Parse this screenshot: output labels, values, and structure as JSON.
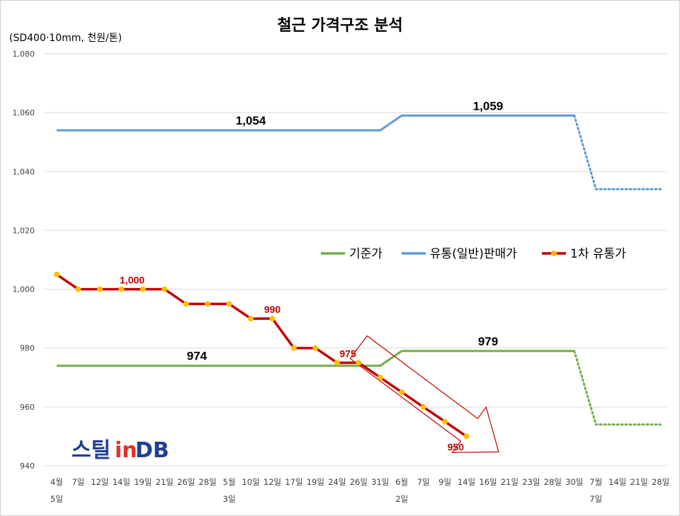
{
  "chart_data": {
    "type": "line",
    "title": "철근 가격구조 분석",
    "unit_label": "(SD400·10mm, 천원/톤)",
    "ylim": [
      940,
      1080
    ],
    "y_ticks": [
      "940",
      "960",
      "980",
      "1,000",
      "1,020",
      "1,040",
      "1,060",
      "1,080"
    ],
    "gridlines": true,
    "legend_position": "middle-right",
    "x_labels": [
      {
        "top": "4월",
        "bottom": "5일"
      },
      {
        "top": "7일",
        "bottom": ""
      },
      {
        "top": "12일",
        "bottom": ""
      },
      {
        "top": "14일",
        "bottom": ""
      },
      {
        "top": "19일",
        "bottom": ""
      },
      {
        "top": "21일",
        "bottom": ""
      },
      {
        "top": "26일",
        "bottom": ""
      },
      {
        "top": "28일",
        "bottom": ""
      },
      {
        "top": "5월",
        "bottom": "3일"
      },
      {
        "top": "10일",
        "bottom": ""
      },
      {
        "top": "12일",
        "bottom": ""
      },
      {
        "top": "17일",
        "bottom": ""
      },
      {
        "top": "19일",
        "bottom": ""
      },
      {
        "top": "24일",
        "bottom": ""
      },
      {
        "top": "26일",
        "bottom": ""
      },
      {
        "top": "31일",
        "bottom": ""
      },
      {
        "top": "6월",
        "bottom": "2일"
      },
      {
        "top": "7일",
        "bottom": ""
      },
      {
        "top": "9일",
        "bottom": ""
      },
      {
        "top": "14일",
        "bottom": ""
      },
      {
        "top": "16일",
        "bottom": ""
      },
      {
        "top": "21일",
        "bottom": ""
      },
      {
        "top": "23일",
        "bottom": ""
      },
      {
        "top": "28일",
        "bottom": ""
      },
      {
        "top": "30일",
        "bottom": ""
      },
      {
        "top": "7월",
        "bottom": "7일"
      },
      {
        "top": "14일",
        "bottom": ""
      },
      {
        "top": "21일",
        "bottom": ""
      },
      {
        "top": "28일",
        "bottom": ""
      }
    ],
    "series": [
      {
        "name": "기준가",
        "color": "#70ad47",
        "values": [
          974,
          974,
          974,
          974,
          974,
          974,
          974,
          974,
          974,
          974,
          974,
          974,
          974,
          974,
          974,
          974,
          979,
          979,
          979,
          979,
          979,
          979,
          979,
          979,
          979,
          954,
          954,
          954,
          954
        ],
        "dotted_from_index": 24
      },
      {
        "name": "유통(일반)판매가",
        "color": "#5b9bd5",
        "values": [
          1054,
          1054,
          1054,
          1054,
          1054,
          1054,
          1054,
          1054,
          1054,
          1054,
          1054,
          1054,
          1054,
          1054,
          1054,
          1054,
          1059,
          1059,
          1059,
          1059,
          1059,
          1059,
          1059,
          1059,
          1059,
          1034,
          1034,
          1034,
          1034
        ],
        "dotted_from_index": 24
      },
      {
        "name": "1차 유통가",
        "color": "#c00000",
        "marker_color": "#ffc000",
        "values": [
          1005,
          1000,
          1000,
          1000,
          1000,
          1000,
          995,
          995,
          995,
          990,
          990,
          980,
          980,
          975,
          975,
          970,
          965,
          960,
          955,
          950,
          null,
          null,
          null,
          null,
          null,
          null,
          null,
          null,
          null
        ]
      }
    ],
    "annotations": [
      {
        "text": "1,054",
        "x_index": 9,
        "y": 1054,
        "style": "big"
      },
      {
        "text": "1,059",
        "x_index": 20,
        "y": 1059,
        "style": "big"
      },
      {
        "text": "974",
        "x_index": 6.5,
        "y": 974,
        "style": "big"
      },
      {
        "text": "979",
        "x_index": 20,
        "y": 979,
        "style": "big"
      },
      {
        "text": "1,000",
        "x_index": 3.5,
        "y": 1000,
        "style": "red"
      },
      {
        "text": "990",
        "x_index": 10,
        "y": 990,
        "style": "red"
      },
      {
        "text": "975",
        "x_index": 13.5,
        "y": 975,
        "style": "red"
      },
      {
        "text": "950",
        "x_index": 18.5,
        "y": 950,
        "style": "red-below"
      }
    ],
    "arrow": {
      "from_index": 14,
      "from_y": 975,
      "to_index": 20,
      "to_y": 950,
      "color": "#c00000"
    }
  },
  "logo": {
    "part1": "스틸",
    "part2": "in",
    "part3": "DB"
  }
}
